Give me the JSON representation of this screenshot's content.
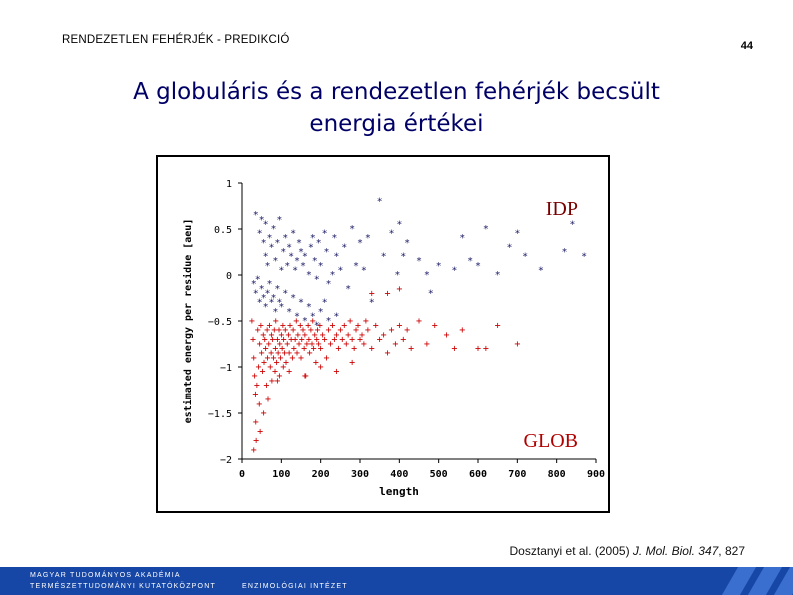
{
  "header": {
    "label": "RENDEZETLEN FEHÉRJÉK - PREDIKCIÓ",
    "page_number": "44"
  },
  "slide": {
    "title_line1": "A globuláris és a rendezetlen fehérjék becsült",
    "title_line2": "energia értékei"
  },
  "chart_data": {
    "type": "scatter",
    "xlabel": "length",
    "ylabel": "estimated energy per residue [aeu]",
    "xlim": [
      0,
      900
    ],
    "ylim": [
      -2,
      1
    ],
    "x_ticks": [
      "0",
      "100",
      "200",
      "300",
      "400",
      "500",
      "600",
      "700",
      "800",
      "900"
    ],
    "y_ticks": [
      "1",
      "0.5",
      "0",
      "−0.5",
      "−1",
      "−1.5",
      "−2"
    ],
    "annotations": [
      {
        "text": "IDP",
        "color": "#7a0000"
      },
      {
        "text": "GLOB",
        "color": "#b00000"
      }
    ],
    "colors": {
      "idp": "#1a1a66",
      "glob": "#cc0000"
    },
    "series": [
      {
        "marker": "*",
        "color": "#1a1a66",
        "points": [
          [
            35,
            0.65
          ],
          [
            45,
            0.45
          ],
          [
            50,
            0.6
          ],
          [
            55,
            0.35
          ],
          [
            60,
            0.55
          ],
          [
            60,
            0.2
          ],
          [
            65,
            0.1
          ],
          [
            70,
            0.4
          ],
          [
            75,
            0.3
          ],
          [
            80,
            0.5
          ],
          [
            85,
            0.15
          ],
          [
            90,
            0.35
          ],
          [
            95,
            0.6
          ],
          [
            100,
            0.05
          ],
          [
            105,
            0.25
          ],
          [
            110,
            0.4
          ],
          [
            115,
            0.1
          ],
          [
            120,
            0.3
          ],
          [
            125,
            0.2
          ],
          [
            130,
            0.45
          ],
          [
            135,
            0.05
          ],
          [
            140,
            0.15
          ],
          [
            145,
            0.35
          ],
          [
            150,
            0.25
          ],
          [
            155,
            0.1
          ],
          [
            160,
            0.2
          ],
          [
            170,
            0.0
          ],
          [
            175,
            0.3
          ],
          [
            180,
            0.4
          ],
          [
            185,
            0.15
          ],
          [
            190,
            -0.05
          ],
          [
            195,
            0.35
          ],
          [
            200,
            0.1
          ],
          [
            210,
            0.45
          ],
          [
            215,
            0.25
          ],
          [
            220,
            -0.1
          ],
          [
            230,
            0.0
          ],
          [
            235,
            0.4
          ],
          [
            240,
            0.2
          ],
          [
            250,
            0.05
          ],
          [
            260,
            0.3
          ],
          [
            270,
            -0.15
          ],
          [
            280,
            0.5
          ],
          [
            290,
            0.1
          ],
          [
            300,
            0.35
          ],
          [
            310,
            0.05
          ],
          [
            320,
            0.4
          ],
          [
            330,
            -0.3
          ],
          [
            350,
            0.8
          ],
          [
            360,
            0.2
          ],
          [
            380,
            0.45
          ],
          [
            395,
            0.0
          ],
          [
            400,
            0.55
          ],
          [
            410,
            0.2
          ],
          [
            420,
            0.35
          ],
          [
            450,
            0.15
          ],
          [
            470,
            0.0
          ],
          [
            480,
            -0.2
          ],
          [
            500,
            0.1
          ],
          [
            540,
            0.05
          ],
          [
            560,
            0.4
          ],
          [
            580,
            0.15
          ],
          [
            600,
            0.1
          ],
          [
            620,
            0.5
          ],
          [
            650,
            0.0
          ],
          [
            680,
            0.3
          ],
          [
            700,
            0.45
          ],
          [
            720,
            0.2
          ],
          [
            760,
            0.05
          ],
          [
            820,
            0.25
          ],
          [
            840,
            0.55
          ],
          [
            870,
            0.2
          ],
          [
            30,
            -0.1
          ],
          [
            35,
            -0.2
          ],
          [
            40,
            -0.05
          ],
          [
            45,
            -0.3
          ],
          [
            50,
            -0.15
          ],
          [
            55,
            -0.25
          ],
          [
            60,
            -0.35
          ],
          [
            65,
            -0.2
          ],
          [
            70,
            -0.1
          ],
          [
            75,
            -0.3
          ],
          [
            80,
            -0.25
          ],
          [
            85,
            -0.4
          ],
          [
            90,
            -0.15
          ],
          [
            95,
            -0.3
          ],
          [
            100,
            -0.35
          ],
          [
            110,
            -0.2
          ],
          [
            120,
            -0.4
          ],
          [
            130,
            -0.25
          ],
          [
            140,
            -0.45
          ],
          [
            150,
            -0.3
          ],
          [
            160,
            -0.5
          ],
          [
            170,
            -0.35
          ],
          [
            180,
            -0.45
          ],
          [
            190,
            -0.55
          ],
          [
            200,
            -0.4
          ],
          [
            210,
            -0.3
          ],
          [
            220,
            -0.5
          ],
          [
            240,
            -0.45
          ]
        ]
      },
      {
        "marker": "+",
        "color": "#cc0000",
        "points": [
          [
            25,
            -0.5
          ],
          [
            28,
            -0.7
          ],
          [
            30,
            -0.9
          ],
          [
            32,
            -1.1
          ],
          [
            34,
            -1.3
          ],
          [
            35,
            -1.6
          ],
          [
            36,
            -1.8
          ],
          [
            38,
            -1.2
          ],
          [
            40,
            -0.6
          ],
          [
            42,
            -1.0
          ],
          [
            44,
            -1.4
          ],
          [
            45,
            -0.75
          ],
          [
            46,
            -1.7
          ],
          [
            48,
            -0.55
          ],
          [
            50,
            -0.85
          ],
          [
            52,
            -1.05
          ],
          [
            54,
            -0.65
          ],
          [
            55,
            -1.5
          ],
          [
            56,
            -0.95
          ],
          [
            58,
            -0.7
          ],
          [
            60,
            -0.8
          ],
          [
            62,
            -1.2
          ],
          [
            64,
            -0.6
          ],
          [
            65,
            -0.9
          ],
          [
            66,
            -1.35
          ],
          [
            68,
            -0.75
          ],
          [
            70,
            -0.55
          ],
          [
            72,
            -1.0
          ],
          [
            74,
            -0.85
          ],
          [
            75,
            -0.65
          ],
          [
            76,
            -1.15
          ],
          [
            78,
            -0.7
          ],
          [
            80,
            -0.9
          ],
          [
            82,
            -0.6
          ],
          [
            84,
            -1.05
          ],
          [
            85,
            -0.8
          ],
          [
            86,
            -0.5
          ],
          [
            88,
            -0.95
          ],
          [
            90,
            -0.7
          ],
          [
            92,
            -0.85
          ],
          [
            94,
            -0.6
          ],
          [
            95,
            -1.1
          ],
          [
            96,
            -0.75
          ],
          [
            98,
            -0.9
          ],
          [
            100,
            -0.65
          ],
          [
            102,
            -0.8
          ],
          [
            104,
            -0.55
          ],
          [
            105,
            -1.0
          ],
          [
            106,
            -0.7
          ],
          [
            108,
            -0.85
          ],
          [
            110,
            -0.6
          ],
          [
            112,
            -0.95
          ],
          [
            115,
            -0.75
          ],
          [
            118,
            -0.65
          ],
          [
            120,
            -0.85
          ],
          [
            122,
            -0.55
          ],
          [
            125,
            -0.7
          ],
          [
            128,
            -0.9
          ],
          [
            130,
            -0.6
          ],
          [
            132,
            -0.8
          ],
          [
            135,
            -0.7
          ],
          [
            138,
            -0.5
          ],
          [
            140,
            -0.85
          ],
          [
            142,
            -0.65
          ],
          [
            145,
            -0.75
          ],
          [
            148,
            -0.55
          ],
          [
            150,
            -0.9
          ],
          [
            152,
            -0.7
          ],
          [
            155,
            -0.6
          ],
          [
            158,
            -0.8
          ],
          [
            160,
            -0.65
          ],
          [
            162,
            -1.1
          ],
          [
            165,
            -0.75
          ],
          [
            168,
            -0.55
          ],
          [
            170,
            -0.7
          ],
          [
            172,
            -0.85
          ],
          [
            175,
            -0.6
          ],
          [
            178,
            -0.75
          ],
          [
            180,
            -0.5
          ],
          [
            182,
            -0.8
          ],
          [
            185,
            -0.65
          ],
          [
            188,
            -0.95
          ],
          [
            190,
            -0.7
          ],
          [
            192,
            -0.6
          ],
          [
            195,
            -0.75
          ],
          [
            198,
            -0.55
          ],
          [
            200,
            -0.8
          ],
          [
            205,
            -0.65
          ],
          [
            210,
            -0.7
          ],
          [
            215,
            -0.9
          ],
          [
            220,
            -0.6
          ],
          [
            225,
            -0.75
          ],
          [
            230,
            -0.55
          ],
          [
            235,
            -0.7
          ],
          [
            240,
            -0.65
          ],
          [
            245,
            -0.8
          ],
          [
            250,
            -0.6
          ],
          [
            255,
            -0.7
          ],
          [
            260,
            -0.55
          ],
          [
            265,
            -0.75
          ],
          [
            270,
            -0.65
          ],
          [
            275,
            -0.5
          ],
          [
            280,
            -0.7
          ],
          [
            285,
            -0.8
          ],
          [
            290,
            -0.6
          ],
          [
            295,
            -0.55
          ],
          [
            300,
            -0.7
          ],
          [
            305,
            -0.65
          ],
          [
            310,
            -0.75
          ],
          [
            315,
            -0.5
          ],
          [
            320,
            -0.6
          ],
          [
            330,
            -0.8
          ],
          [
            340,
            -0.55
          ],
          [
            350,
            -0.7
          ],
          [
            360,
            -0.65
          ],
          [
            370,
            -0.85
          ],
          [
            380,
            -0.6
          ],
          [
            390,
            -0.75
          ],
          [
            400,
            -0.55
          ],
          [
            410,
            -0.7
          ],
          [
            420,
            -0.6
          ],
          [
            430,
            -0.8
          ],
          [
            450,
            -0.5
          ],
          [
            470,
            -0.75
          ],
          [
            490,
            -0.55
          ],
          [
            520,
            -0.65
          ],
          [
            540,
            -0.8
          ],
          [
            560,
            -0.6
          ],
          [
            600,
            -0.8
          ],
          [
            620,
            -0.8
          ],
          [
            650,
            -0.55
          ],
          [
            700,
            -0.75
          ],
          [
            120,
            -1.05
          ],
          [
            160,
            -1.1
          ],
          [
            200,
            -1.0
          ],
          [
            240,
            -1.05
          ],
          [
            280,
            -0.95
          ],
          [
            330,
            -0.2
          ],
          [
            370,
            -0.2
          ],
          [
            400,
            -0.15
          ],
          [
            30,
            -1.9
          ],
          [
            90,
            -1.15
          ]
        ]
      }
    ]
  },
  "citation": {
    "authors": "Dosztanyi et al. (2005) ",
    "journal": "J. Mol. Biol. 347",
    "pages": ", 827"
  },
  "footer": {
    "org_line1": "MAGYAR TUDOMÁNYOS AKADÉMIA",
    "org_line2": "TERMÉSZETTUDOMÁNYI KUTATÓKÖZPONT",
    "institute": "ENZIMOLÓGIAI INTÉZET"
  }
}
